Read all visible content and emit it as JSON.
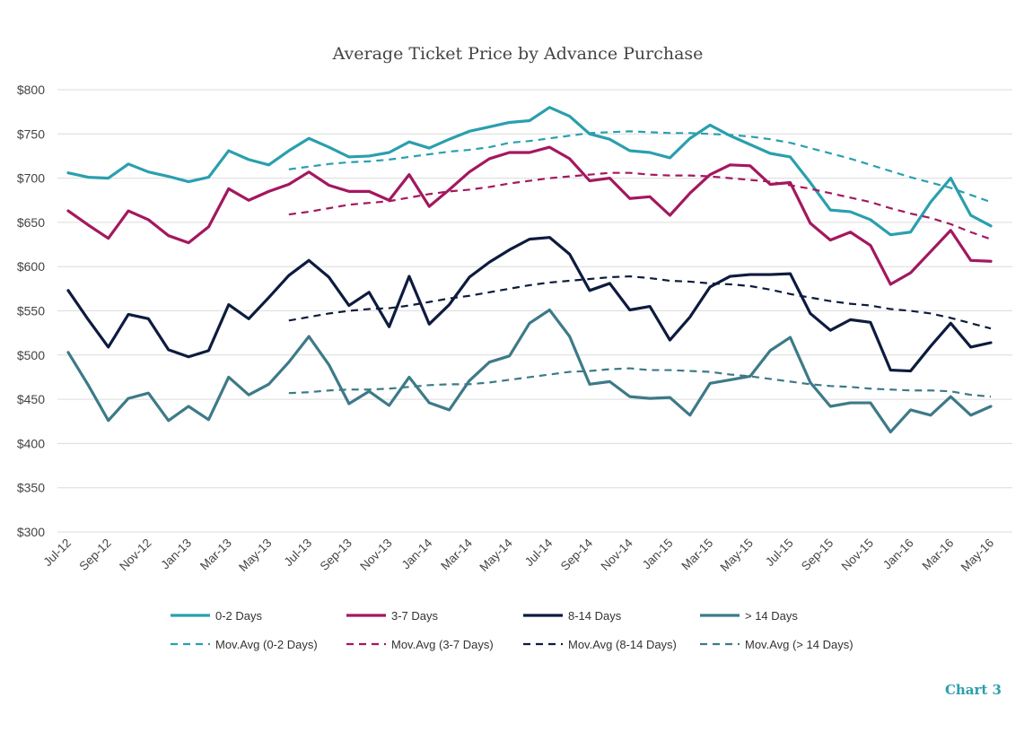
{
  "chart_data": {
    "type": "line",
    "title": "Average Ticket Price by Advance Purchase",
    "x_labels": [
      "Jul-12",
      "Sep-12",
      "Nov-12",
      "Jan-13",
      "Mar-13",
      "May-13",
      "Jul-13",
      "Sep-13",
      "Nov-13",
      "Jan-14",
      "Mar-14",
      "May-14",
      "Jul-14",
      "Sep-14",
      "Nov-14",
      "Jan-15",
      "Mar-15",
      "May-15",
      "Jul-15",
      "Sep-15",
      "Nov-15",
      "Jan-16",
      "Mar-16",
      "May-16"
    ],
    "y_ticks": [
      "$300",
      "$350",
      "$400",
      "$450",
      "$500",
      "$550",
      "$600",
      "$650",
      "$700",
      "$750",
      "$800"
    ],
    "ylim": [
      300,
      800
    ],
    "grid": true,
    "legend_position": "bottom",
    "series": [
      {
        "name": "0-2 Days",
        "color": "#2a9fae",
        "style": "solid",
        "values": [
          706,
          701,
          700,
          716,
          707,
          702,
          696,
          701,
          731,
          721,
          715,
          731,
          745,
          735,
          724,
          725,
          729,
          741,
          734,
          744,
          753,
          758,
          763,
          765,
          780,
          770,
          750,
          744,
          731,
          729,
          723,
          745,
          760,
          748,
          738,
          728,
          724,
          695,
          664,
          662,
          653,
          636,
          639,
          673,
          700,
          658,
          646
        ]
      },
      {
        "name": "3-7 Days",
        "color": "#a3185f",
        "style": "solid",
        "values": [
          663,
          647,
          632,
          663,
          653,
          635,
          627,
          645,
          688,
          675,
          685,
          693,
          707,
          692,
          685,
          685,
          675,
          704,
          668,
          687,
          707,
          722,
          729,
          729,
          735,
          722,
          697,
          700,
          677,
          679,
          658,
          683,
          704,
          715,
          714,
          693,
          695,
          649,
          630,
          639,
          624,
          580,
          593,
          617,
          641,
          607,
          606
        ]
      },
      {
        "name": "8-14 Days",
        "color": "#0d1b3e",
        "style": "solid",
        "values": [
          573,
          540,
          509,
          546,
          541,
          506,
          498,
          505,
          557,
          541,
          565,
          590,
          607,
          588,
          556,
          571,
          532,
          589,
          535,
          557,
          588,
          605,
          619,
          631,
          633,
          614,
          573,
          581,
          551,
          555,
          517,
          543,
          577,
          589,
          591,
          591,
          592,
          547,
          528,
          540,
          537,
          483,
          482,
          510,
          536,
          509,
          514
        ]
      },
      {
        "name": "> 14 Days",
        "color": "#3d7a88",
        "style": "solid",
        "values": [
          503,
          466,
          426,
          451,
          457,
          426,
          442,
          427,
          475,
          455,
          467,
          492,
          521,
          489,
          445,
          459,
          443,
          475,
          446,
          438,
          471,
          492,
          499,
          536,
          551,
          521,
          467,
          470,
          453,
          451,
          452,
          432,
          468,
          472,
          476,
          505,
          520,
          469,
          442,
          446,
          446,
          413,
          438,
          432,
          453,
          432,
          442
        ]
      },
      {
        "name": "Mov.Avg (0-2 Days)",
        "color": "#2a9fae",
        "style": "dashed",
        "start_index": 11,
        "values": [
          710,
          713,
          716,
          718,
          719,
          721,
          724,
          727,
          730,
          732,
          735,
          740,
          742,
          745,
          748,
          751,
          752,
          753,
          752,
          751,
          751,
          750,
          749,
          747,
          744,
          740,
          734,
          728,
          722,
          715,
          708,
          701,
          695,
          689,
          681,
          673
        ]
      },
      {
        "name": "Mov.Avg (3-7 Days)",
        "color": "#a3185f",
        "style": "dashed",
        "start_index": 11,
        "values": [
          659,
          662,
          666,
          670,
          672,
          674,
          678,
          682,
          685,
          687,
          690,
          694,
          697,
          700,
          702,
          704,
          706,
          706,
          704,
          703,
          703,
          702,
          700,
          698,
          696,
          692,
          688,
          683,
          678,
          673,
          666,
          660,
          655,
          648,
          639,
          631
        ]
      },
      {
        "name": "Mov.Avg (8-14 Days)",
        "color": "#0d1b3e",
        "style": "dashed",
        "start_index": 11,
        "values": [
          539,
          543,
          547,
          550,
          552,
          553,
          556,
          560,
          564,
          567,
          571,
          575,
          579,
          582,
          584,
          586,
          588,
          589,
          587,
          584,
          583,
          581,
          580,
          578,
          574,
          569,
          565,
          561,
          558,
          556,
          552,
          550,
          547,
          542,
          536,
          530
        ]
      },
      {
        "name": "Mov.Avg (> 14 Days)",
        "color": "#3d7a88",
        "style": "dashed",
        "start_index": 11,
        "values": [
          457,
          458,
          460,
          461,
          461,
          462,
          464,
          466,
          467,
          467,
          469,
          472,
          475,
          478,
          481,
          482,
          484,
          485,
          483,
          483,
          482,
          481,
          478,
          476,
          473,
          470,
          467,
          465,
          464,
          462,
          461,
          460,
          460,
          459,
          455,
          453
        ]
      }
    ]
  },
  "footer": {
    "chart_tag": "Chart 3"
  }
}
